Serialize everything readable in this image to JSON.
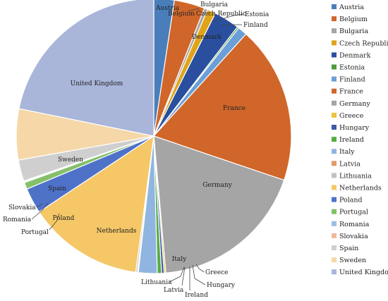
{
  "chart_data": {
    "type": "pie",
    "title": "",
    "legend_position": "right",
    "slices": [
      {
        "name": "Austria",
        "value": 2.4,
        "color": "#4a7ebb"
      },
      {
        "name": "Belgium",
        "value": 3.6,
        "color": "#d0662a"
      },
      {
        "name": "Bulgaria",
        "value": 0.4,
        "color": "#a5a5a5"
      },
      {
        "name": "Czech Republic",
        "value": 1.0,
        "color": "#e0a419"
      },
      {
        "name": "Denmark",
        "value": 3.0,
        "color": "#2a4f9e"
      },
      {
        "name": "Estonia",
        "value": 0.2,
        "color": "#4f9a3c"
      },
      {
        "name": "Finland",
        "value": 1.1,
        "color": "#6a9fd8"
      },
      {
        "name": "France",
        "value": 18.5,
        "color": "#d0662a"
      },
      {
        "name": "Germany",
        "value": 18.4,
        "color": "#a5a5a5"
      },
      {
        "name": "Greece",
        "value": 0.2,
        "color": "#ecc43a"
      },
      {
        "name": "Hungary",
        "value": 0.3,
        "color": "#3b5aa8"
      },
      {
        "name": "Ireland",
        "value": 0.5,
        "color": "#5aab45"
      },
      {
        "name": "Italy",
        "value": 2.2,
        "color": "#8fb5e0"
      },
      {
        "name": "Latvia",
        "value": 0.1,
        "color": "#e09a6a"
      },
      {
        "name": "Lithuania",
        "value": 0.2,
        "color": "#c2c2c2"
      },
      {
        "name": "Netherlands",
        "value": 13.6,
        "color": "#f5c767"
      },
      {
        "name": "Poland",
        "value": 3.0,
        "color": "#4f72c9"
      },
      {
        "name": "Portugal",
        "value": 0.8,
        "color": "#84c06a"
      },
      {
        "name": "Romania",
        "value": 0.1,
        "color": "#9ebde6"
      },
      {
        "name": "Slovakia",
        "value": 0.1,
        "color": "#f0b99a"
      },
      {
        "name": "Spain",
        "value": 2.5,
        "color": "#cfcfcf"
      },
      {
        "name": "Sweden",
        "value": 6.0,
        "color": "#f5d7a8"
      },
      {
        "name": "United Kingdom",
        "value": 21.8,
        "color": "#a9b5d9"
      }
    ]
  }
}
